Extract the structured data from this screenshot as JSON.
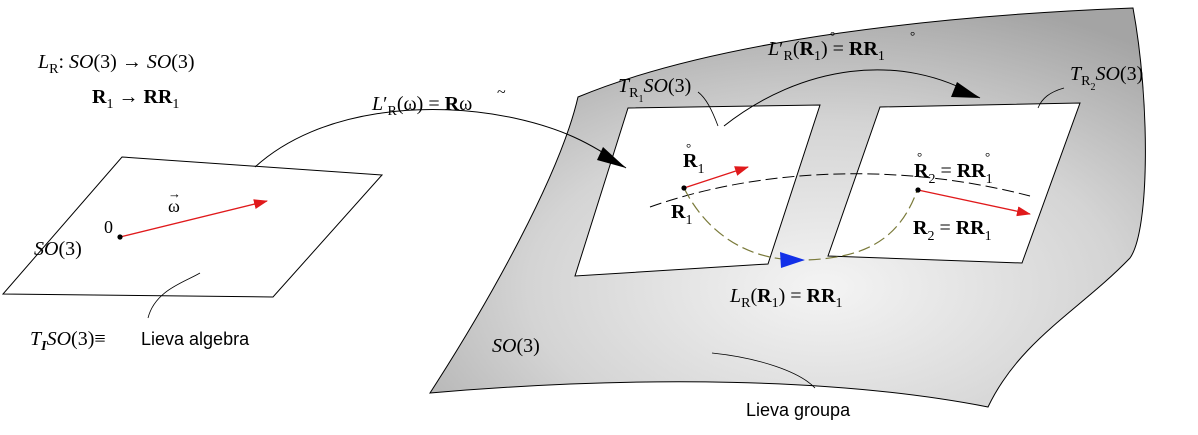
{
  "map_definition": {
    "L": "L",
    "sub_R": "R",
    "colon_domain": ": ",
    "SO": "SO",
    "arg3": "(3)",
    "arrow": " → ",
    "R": "R",
    "sub1": "1",
    "RR": "RR"
  },
  "algebra_plane": {
    "origin": "0",
    "omega": "ω",
    "vec_arrow": "→",
    "space_SO": "SO",
    "space_arg": "(3)"
  },
  "algebra_label": {
    "T": "T",
    "sub_I": "I",
    "SO": "SO",
    "arg": "(3)",
    "equiv": "≡",
    "text": "Lieva algebra"
  },
  "derivative_map_label": {
    "L": "L",
    "prime": "′",
    "sub_R": "R",
    "arg_omega": "(ω) = ",
    "R": "R",
    "omega_tilde": "ω",
    "tilde": "~"
  },
  "tangent_left": {
    "T": "T",
    "sub_R": "R",
    "sub_1": "1",
    "SO": "SO",
    "arg": "(3)"
  },
  "tangent_right": {
    "T": "T",
    "sub_R": "R",
    "sub_2": "2",
    "SO": "SO",
    "arg": "(3)"
  },
  "top_map_label": {
    "L": "L",
    "prime": "′",
    "sub_R": "R",
    "open": "(",
    "R": "R",
    "ring": "°",
    "sub1": "1",
    "close_eq": ") = ",
    "RR": "RR",
    "ring2": "°",
    "sub1b": "1"
  },
  "left_points": {
    "R_dot": "R",
    "ring": "°",
    "sub1": "1",
    "R": "R",
    "sub1b": "1"
  },
  "right_points": {
    "R_dot": "R",
    "ring": "°",
    "sub2": "2",
    "eq": " = ",
    "RR_dot": "RR",
    "ring2": "°",
    "sub1": "1",
    "R": "R",
    "sub2b": "2",
    "eq2": " = ",
    "RR": "RR",
    "sub1b": "1"
  },
  "group_map_label": {
    "L": "L",
    "sub_R": "R",
    "open": "(",
    "R": "R",
    "sub1": "1",
    "close_eq": ") = ",
    "RR": "RR",
    "sub1b": "1"
  },
  "group_surface": {
    "SO": "SO",
    "arg": "(3)",
    "name": "Lieva groupa"
  },
  "colors": {
    "vector": "#e0191b",
    "flow_arrow": "#1230e8",
    "surface_light": "#f2f2f2",
    "surface_dark": "#a9a9a9",
    "stroke": "#000000"
  }
}
